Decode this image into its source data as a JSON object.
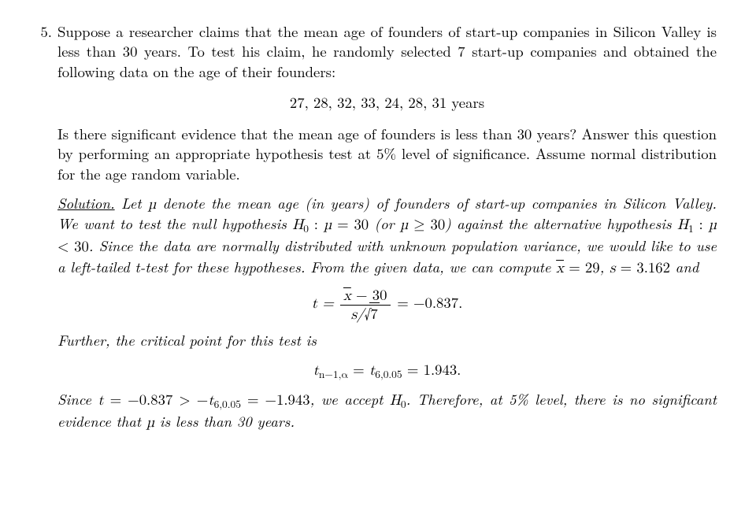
{
  "problem": {
    "number": "5.",
    "intro_a": "Suppose a researcher claims that the mean age of founders of start-up companies in Silicon Valley is less than 30 years.",
    "intro_b": "To test his claim, he randomly selected 7 start-up companies and obtained the following data on the age of their founders:",
    "data_line": "27, 28, 32, 33, 24, 28, 31 years",
    "question": "Is there significant evidence that the mean age of founders is less than 30 years? Answer this question by performing an appropriate hypothesis test at 5% level of significance. Assume normal distribution for the age random variable."
  },
  "solution": {
    "label": "Solution.",
    "lead": " Let ",
    "mu": "µ",
    "sent1_a": " denote the mean age (in years) of founders of start-up companies in Silicon Valley. We want to test the null hypothesis ",
    "H0": "H",
    "H0sub": "0",
    "colon": " : ",
    "mu_eq_30": " = 30",
    "or_open": " (or ",
    "mu_ge_30": " ≥ 30",
    "or_close": ")",
    "against": " against the alternative hypothesis ",
    "H1": "H",
    "H1sub": "1",
    "mu_lt_30": " < 30",
    "period": ". ",
    "sent2": "Since the data are normally distributed with unknown population variance, we would like to use a left-tailed t-test for these hypotheses. From the given data, we can compute ",
    "xbar": "x",
    "xbar_val": " = 29",
    "comma": ", ",
    "s": "s",
    "s_val": " = 3.162",
    "and": " and",
    "t_eq": "t = ",
    "frac_num_a": "x",
    "frac_num_b": " − 30",
    "frac_den_a": "s/",
    "frac_den_root": "7",
    "eq_val": " = −0.837.",
    "further": "Further, the critical point for this test is",
    "crit_lhs_a": "t",
    "crit_lhs_sub": "n−1,α",
    "crit_eq1": " = ",
    "crit_mid_a": "t",
    "crit_mid_sub": "6,0.05",
    "crit_eq2": " = 1.943.",
    "since_a": "Since ",
    "since_b": " = −0.837 > −",
    "since_c": " = −1.943",
    "since_d": ", we accept ",
    "since_e": ". Therefore, at 5% level, there is no significant evidence that ",
    "since_f": " is less than 30 years."
  }
}
